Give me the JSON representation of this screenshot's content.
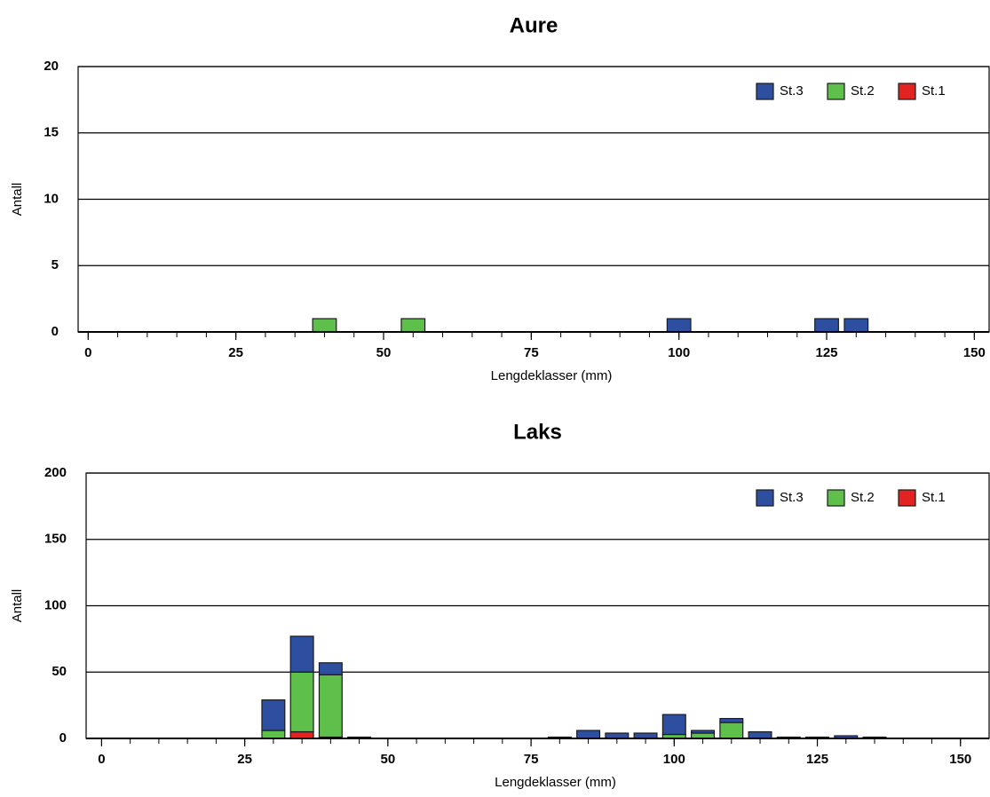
{
  "chart_data": [
    {
      "type": "bar",
      "stacked": true,
      "title": "Aure",
      "x_label": "Lengdeklasser (mm)",
      "y_label": "Antall",
      "x": [
        0,
        5,
        10,
        15,
        20,
        25,
        30,
        35,
        40,
        45,
        50,
        55,
        60,
        65,
        70,
        75,
        80,
        85,
        90,
        95,
        100,
        105,
        110,
        115,
        120,
        125,
        130,
        135,
        140,
        145,
        150
      ],
      "series": [
        {
          "name": "St.3",
          "color": "#2e4fa0",
          "values": [
            0,
            0,
            0,
            0,
            0,
            0,
            0,
            0,
            0,
            0,
            0,
            0,
            0,
            0,
            0,
            0,
            0,
            0,
            0,
            0,
            1,
            0,
            0,
            0,
            0,
            1,
            1,
            0,
            0,
            0,
            0
          ]
        },
        {
          "name": "St.2",
          "color": "#5ec04a",
          "values": [
            0,
            0,
            0,
            0,
            0,
            0,
            0,
            0,
            1,
            0,
            0,
            1,
            0,
            0,
            0,
            0,
            0,
            0,
            0,
            0,
            0,
            0,
            0,
            0,
            0,
            0,
            0,
            0,
            0,
            0,
            0
          ]
        },
        {
          "name": "St.1",
          "color": "#e32222",
          "values": [
            0,
            0,
            0,
            0,
            0,
            0,
            0,
            0,
            0,
            0,
            0,
            0,
            0,
            0,
            0,
            0,
            0,
            0,
            0,
            0,
            0,
            0,
            0,
            0,
            0,
            0,
            0,
            0,
            0,
            0,
            0
          ]
        }
      ],
      "xlim": [
        -1.7,
        152.5
      ],
      "ylim": [
        0,
        20
      ],
      "xticks": [
        0,
        25,
        50,
        75,
        100,
        125,
        150
      ],
      "yticks": [
        0,
        5,
        10,
        15,
        20
      ],
      "grid": true,
      "legend": "upper right"
    },
    {
      "type": "bar",
      "stacked": true,
      "title": "Laks",
      "x_label": "Lengdeklasser (mm)",
      "y_label": "Antall",
      "x": [
        0,
        5,
        10,
        15,
        20,
        25,
        30,
        35,
        40,
        45,
        50,
        55,
        60,
        65,
        70,
        75,
        80,
        85,
        90,
        95,
        100,
        105,
        110,
        115,
        120,
        125,
        130,
        135,
        140,
        145,
        150
      ],
      "series": [
        {
          "name": "St.3",
          "color": "#2e4fa0",
          "values": [
            0,
            0,
            0,
            0,
            0,
            0,
            23,
            27,
            9,
            1,
            0,
            0,
            0,
            0,
            0,
            0,
            1,
            6,
            4,
            4,
            15,
            2,
            3,
            5,
            1,
            1,
            2,
            1,
            0,
            0,
            0
          ]
        },
        {
          "name": "St.2",
          "color": "#5ec04a",
          "values": [
            0,
            0,
            0,
            0,
            0,
            0,
            6,
            45,
            47,
            0,
            0,
            0,
            0,
            0,
            0,
            0,
            0,
            0,
            0,
            0,
            3,
            4,
            12,
            0,
            0,
            0,
            0,
            0,
            0,
            0,
            0
          ]
        },
        {
          "name": "St.1",
          "color": "#e32222",
          "values": [
            0,
            0,
            0,
            0,
            0,
            0,
            0,
            5,
            1,
            0,
            0,
            0,
            0,
            0,
            0,
            0,
            0,
            0,
            0,
            0,
            0,
            0,
            0,
            0,
            0,
            0,
            0,
            0,
            0,
            0,
            0
          ]
        }
      ],
      "xlim": [
        -2.7,
        155
      ],
      "ylim": [
        0,
        200
      ],
      "xticks": [
        0,
        25,
        50,
        75,
        100,
        125,
        150
      ],
      "yticks": [
        0,
        50,
        100,
        150,
        200
      ],
      "grid": true,
      "legend": "upper right"
    }
  ]
}
